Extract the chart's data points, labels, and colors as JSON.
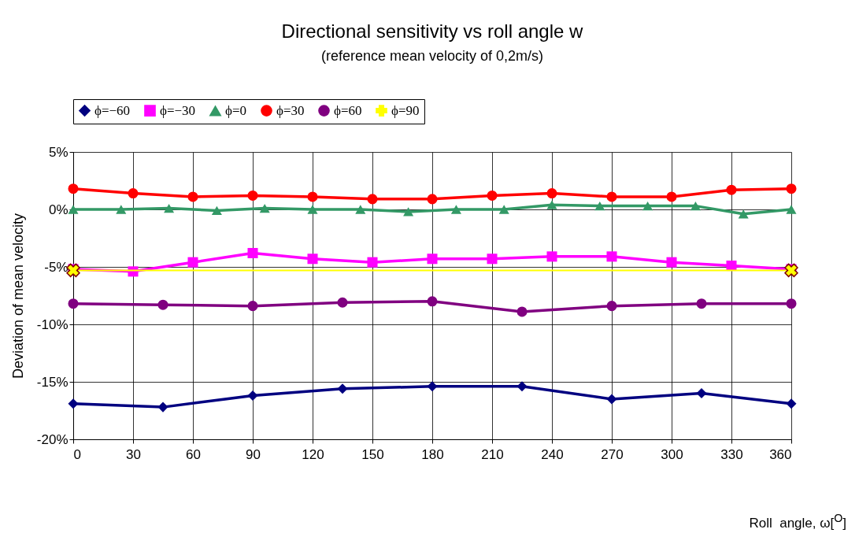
{
  "chart_data": {
    "type": "line",
    "title": "Directional sensitivity vs roll angle w",
    "subtitle": "(reference mean velocity of 0,2m/s)",
    "xlabel": "Roll  angle, ω[$^{O}$]",
    "ylabel": "Deviation of mean velocity",
    "xlim": [
      0,
      360
    ],
    "xticks": [
      0,
      30,
      60,
      90,
      120,
      150,
      180,
      210,
      240,
      270,
      300,
      330,
      360
    ],
    "ylim": [
      -20,
      5
    ],
    "yticks": [
      {
        "value": -20,
        "label": "-20%"
      },
      {
        "value": -15,
        "label": "-15%"
      },
      {
        "value": -10,
        "label": "-10%"
      },
      {
        "value": -5,
        "label": "-5%"
      },
      {
        "value": 0,
        "label": "0%"
      },
      {
        "value": 5,
        "label": "5%"
      }
    ],
    "grid": true,
    "legend": "top",
    "series": [
      {
        "name": "ϕ=−60",
        "color": "#000080",
        "marker": "diamond",
        "x": [
          0,
          45,
          90,
          135,
          180,
          225,
          270,
          315,
          360
        ],
        "values": [
          -16.9,
          -17.2,
          -16.2,
          -15.6,
          -15.4,
          -15.4,
          -16.5,
          -16.0,
          -16.9
        ]
      },
      {
        "name": "ϕ=−30",
        "color": "#ff00ff",
        "marker": "square",
        "x": [
          0,
          30,
          60,
          90,
          120,
          150,
          180,
          210,
          240,
          270,
          300,
          330,
          360
        ],
        "values": [
          -5.2,
          -5.4,
          -4.6,
          -3.8,
          -4.3,
          -4.6,
          -4.3,
          -4.3,
          -4.1,
          -4.1,
          -4.6,
          -4.9,
          -5.2
        ]
      },
      {
        "name": "ϕ=0",
        "color": "#339966",
        "marker": "triangle",
        "x": [
          0,
          24,
          48,
          72,
          96,
          120,
          144,
          168,
          192,
          216,
          240,
          264,
          288,
          312,
          336,
          360
        ],
        "values": [
          0,
          0,
          0.1,
          -0.1,
          0.1,
          0,
          0,
          -0.2,
          0,
          0,
          0.4,
          0.3,
          0.3,
          0.3,
          -0.4,
          0
        ]
      },
      {
        "name": "ϕ=30",
        "color": "#ff0000",
        "marker": "circle",
        "x": [
          0,
          30,
          60,
          90,
          120,
          150,
          180,
          210,
          240,
          270,
          300,
          330,
          360
        ],
        "values": [
          1.8,
          1.4,
          1.1,
          1.2,
          1.1,
          0.9,
          0.9,
          1.2,
          1.4,
          1.1,
          1.1,
          1.7,
          1.8
        ]
      },
      {
        "name": "ϕ=60",
        "color": "#800080",
        "marker": "circle",
        "x": [
          0,
          45,
          90,
          135,
          180,
          225,
          270,
          315,
          360
        ],
        "values": [
          -8.2,
          -8.3,
          -8.4,
          -8.1,
          -8.0,
          -8.9,
          -8.4,
          -8.2,
          -8.2
        ]
      },
      {
        "name": "ϕ=90",
        "color": "#ffff00",
        "marker": "cross",
        "x": [
          0,
          360
        ],
        "values": [
          -5.3,
          -5.3
        ]
      }
    ]
  }
}
